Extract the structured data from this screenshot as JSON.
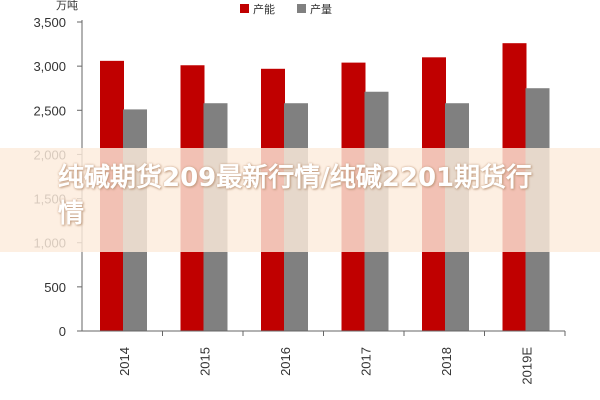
{
  "chart_data": {
    "type": "bar",
    "unit_label": "万吨",
    "categories": [
      "2014",
      "2015",
      "2016",
      "2017",
      "2018",
      "2019E"
    ],
    "series": [
      {
        "name": "产能",
        "color": "#c00000",
        "values": [
          3060,
          3010,
          2970,
          3040,
          3100,
          3260
        ]
      },
      {
        "name": "产量",
        "color": "#808080",
        "values": [
          2510,
          2580,
          2580,
          2710,
          2580,
          2750
        ]
      }
    ],
    "ylim": [
      0,
      3500
    ],
    "yticks": [
      "0",
      "500",
      "1,000",
      "1,500",
      "2,000",
      "2,500",
      "3,000",
      "3,500"
    ],
    "legend_position": "top-center",
    "grid": false
  },
  "overlay": {
    "text": "纯碱期货209最新行情/纯碱2201期货行情"
  }
}
